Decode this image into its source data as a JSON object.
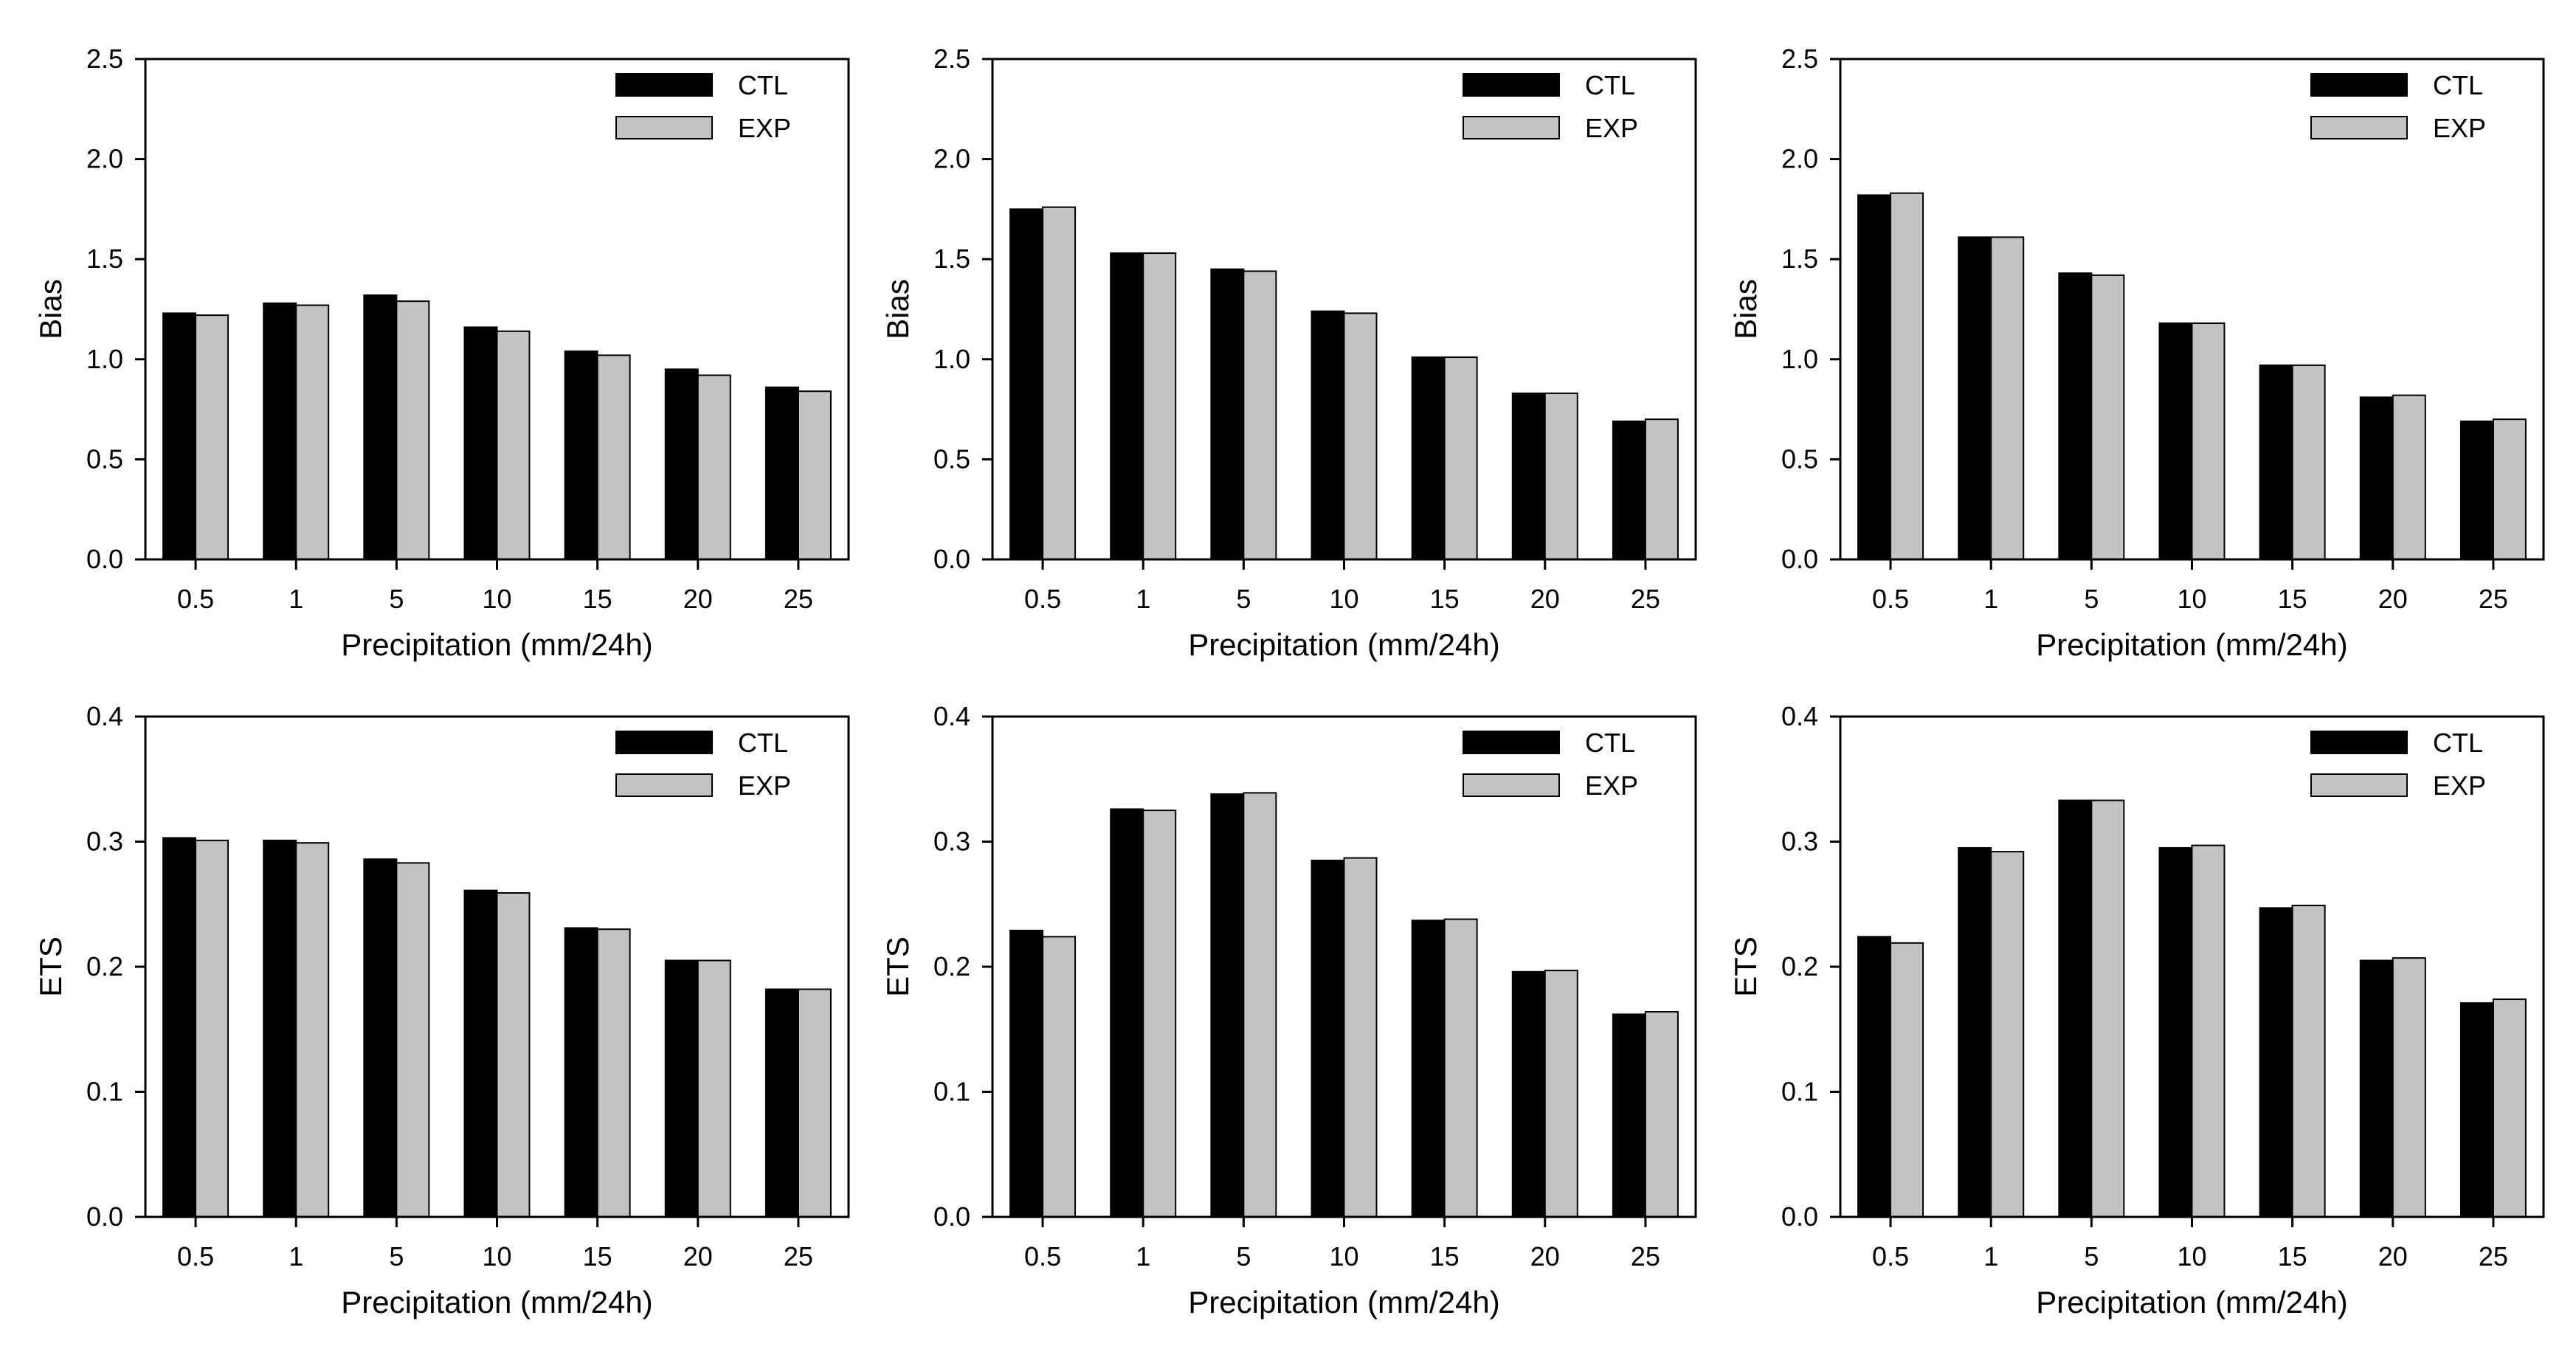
{
  "colors": {
    "ctl": "#000000",
    "exp": "#c3c3c3",
    "axis": "#000000",
    "background": "#ffffff"
  },
  "chart_data": [
    {
      "type": "bar",
      "panel": "top-left",
      "categories": [
        "0.5",
        "1",
        "5",
        "10",
        "15",
        "20",
        "25"
      ],
      "series": [
        {
          "name": "CTL",
          "values": [
            1.23,
            1.28,
            1.32,
            1.16,
            1.04,
            0.95,
            0.86
          ]
        },
        {
          "name": "EXP",
          "values": [
            1.22,
            1.27,
            1.29,
            1.14,
            1.02,
            0.92,
            0.84
          ]
        }
      ],
      "ylim": [
        0,
        2.5
      ],
      "yticks": [
        "0.0",
        "0.5",
        "1.0",
        "1.5",
        "2.0",
        "2.5"
      ],
      "xlabel": "Precipitation (mm/24h)",
      "ylabel": "Bias",
      "legend": {
        "placement": "top-right",
        "entries": [
          "CTL",
          "EXP"
        ]
      }
    },
    {
      "type": "bar",
      "panel": "top-middle",
      "categories": [
        "0.5",
        "1",
        "5",
        "10",
        "15",
        "20",
        "25"
      ],
      "series": [
        {
          "name": "CTL",
          "values": [
            1.75,
            1.53,
            1.45,
            1.24,
            1.01,
            0.83,
            0.69
          ]
        },
        {
          "name": "EXP",
          "values": [
            1.76,
            1.53,
            1.44,
            1.23,
            1.01,
            0.83,
            0.7
          ]
        }
      ],
      "ylim": [
        0,
        2.5
      ],
      "yticks": [
        "0.0",
        "0.5",
        "1.0",
        "1.5",
        "2.0",
        "2.5"
      ],
      "xlabel": "Precipitation (mm/24h)",
      "ylabel": "Bias",
      "legend": {
        "placement": "top-right",
        "entries": [
          "CTL",
          "EXP"
        ]
      }
    },
    {
      "type": "bar",
      "panel": "top-right",
      "categories": [
        "0.5",
        "1",
        "5",
        "10",
        "15",
        "20",
        "25"
      ],
      "series": [
        {
          "name": "CTL",
          "values": [
            1.82,
            1.61,
            1.43,
            1.18,
            0.97,
            0.81,
            0.69
          ]
        },
        {
          "name": "EXP",
          "values": [
            1.83,
            1.61,
            1.42,
            1.18,
            0.97,
            0.82,
            0.7
          ]
        }
      ],
      "ylim": [
        0,
        2.5
      ],
      "yticks": [
        "0.0",
        "0.5",
        "1.0",
        "1.5",
        "2.0",
        "2.5"
      ],
      "xlabel": "Precipitation (mm/24h)",
      "ylabel": "Bias",
      "legend": {
        "placement": "top-right",
        "entries": [
          "CTL",
          "EXP"
        ]
      }
    },
    {
      "type": "bar",
      "panel": "bottom-left",
      "categories": [
        "0.5",
        "1",
        "5",
        "10",
        "15",
        "20",
        "25"
      ],
      "series": [
        {
          "name": "CTL",
          "values": [
            0.303,
            0.301,
            0.286,
            0.261,
            0.231,
            0.205,
            0.182
          ]
        },
        {
          "name": "EXP",
          "values": [
            0.301,
            0.299,
            0.283,
            0.259,
            0.23,
            0.205,
            0.182
          ]
        }
      ],
      "ylim": [
        0,
        0.4
      ],
      "yticks": [
        "0.0",
        "0.1",
        "0.2",
        "0.3",
        "0.4"
      ],
      "xlabel": "Precipitation (mm/24h)",
      "ylabel": "ETS",
      "legend": {
        "placement": "top-right",
        "entries": [
          "CTL",
          "EXP"
        ]
      }
    },
    {
      "type": "bar",
      "panel": "bottom-middle",
      "categories": [
        "0.5",
        "1",
        "5",
        "10",
        "15",
        "20",
        "25"
      ],
      "series": [
        {
          "name": "CTL",
          "values": [
            0.229,
            0.326,
            0.338,
            0.285,
            0.237,
            0.196,
            0.162
          ]
        },
        {
          "name": "EXP",
          "values": [
            0.224,
            0.325,
            0.339,
            0.287,
            0.238,
            0.197,
            0.164
          ]
        }
      ],
      "ylim": [
        0,
        0.4
      ],
      "yticks": [
        "0.0",
        "0.1",
        "0.2",
        "0.3",
        "0.4"
      ],
      "xlabel": "Precipitation (mm/24h)",
      "ylabel": "ETS",
      "legend": {
        "placement": "top-right",
        "entries": [
          "CTL",
          "EXP"
        ]
      }
    },
    {
      "type": "bar",
      "panel": "bottom-right",
      "categories": [
        "0.5",
        "1",
        "5",
        "10",
        "15",
        "20",
        "25"
      ],
      "series": [
        {
          "name": "CTL",
          "values": [
            0.224,
            0.295,
            0.333,
            0.295,
            0.247,
            0.205,
            0.171
          ]
        },
        {
          "name": "EXP",
          "values": [
            0.219,
            0.292,
            0.333,
            0.297,
            0.249,
            0.207,
            0.174
          ]
        }
      ],
      "ylim": [
        0,
        0.4
      ],
      "yticks": [
        "0.0",
        "0.1",
        "0.2",
        "0.3",
        "0.4"
      ],
      "xlabel": "Precipitation (mm/24h)",
      "ylabel": "ETS",
      "legend": {
        "placement": "top-right",
        "entries": [
          "CTL",
          "EXP"
        ]
      }
    }
  ]
}
